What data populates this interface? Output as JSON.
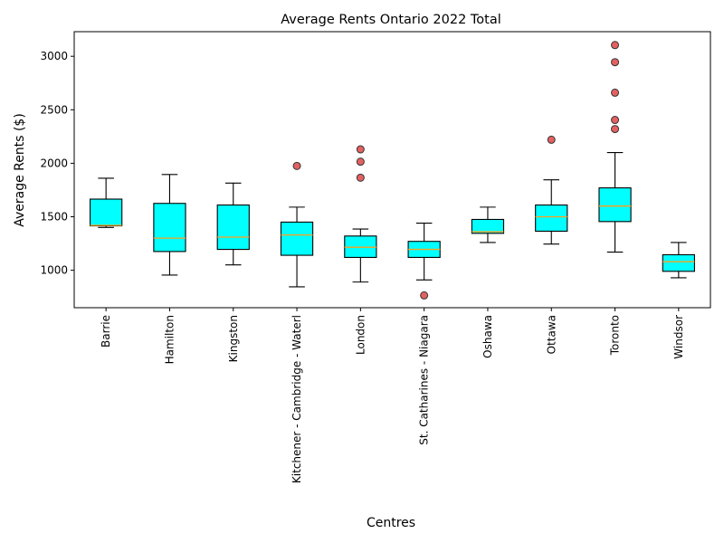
{
  "chart_data": {
    "type": "box",
    "title": "Average Rents Ontario  2022 Total",
    "xlabel": "Centres",
    "ylabel": "Average Rents ($)",
    "ylim": [
      650,
      3230
    ],
    "yticks": [
      1000,
      1500,
      2000,
      2500,
      3000
    ],
    "colors": {
      "box_fill": "#00ffff",
      "median": "#ff9f1c",
      "outlier": "#e05050"
    },
    "categories": [
      "Barrie",
      "Hamilton",
      "Kingston",
      "Kitchener - Cambridge - Waterl",
      "London",
      "St. Catharines - Niagara",
      "Oshawa",
      "Ottawa",
      "Toronto",
      "Windsor"
    ],
    "boxes": [
      {
        "whislo": 1400,
        "q1": 1415,
        "med": 1420,
        "q3": 1665,
        "whishi": 1860,
        "fliers": []
      },
      {
        "whislo": 955,
        "q1": 1175,
        "med": 1300,
        "q3": 1625,
        "whishi": 1895,
        "fliers": []
      },
      {
        "whislo": 1050,
        "q1": 1195,
        "med": 1310,
        "q3": 1610,
        "whishi": 1815,
        "fliers": []
      },
      {
        "whislo": 845,
        "q1": 1140,
        "med": 1330,
        "q3": 1450,
        "whishi": 1590,
        "fliers": [
          1975
        ]
      },
      {
        "whislo": 890,
        "q1": 1120,
        "med": 1215,
        "q3": 1320,
        "whishi": 1385,
        "fliers": [
          1865,
          2015,
          2130
        ]
      },
      {
        "whislo": 910,
        "q1": 1120,
        "med": 1195,
        "q3": 1270,
        "whishi": 1440,
        "fliers": [
          765
        ]
      },
      {
        "whislo": 1260,
        "q1": 1345,
        "med": 1360,
        "q3": 1475,
        "whishi": 1590,
        "fliers": []
      },
      {
        "whislo": 1245,
        "q1": 1365,
        "med": 1500,
        "q3": 1610,
        "whishi": 1845,
        "fliers": [
          2220
        ]
      },
      {
        "whislo": 1170,
        "q1": 1455,
        "med": 1600,
        "q3": 1770,
        "whishi": 2100,
        "fliers": [
          2320,
          2405,
          2660,
          2945,
          3105
        ]
      },
      {
        "whislo": 930,
        "q1": 990,
        "med": 1080,
        "q3": 1145,
        "whishi": 1260,
        "fliers": []
      }
    ]
  }
}
